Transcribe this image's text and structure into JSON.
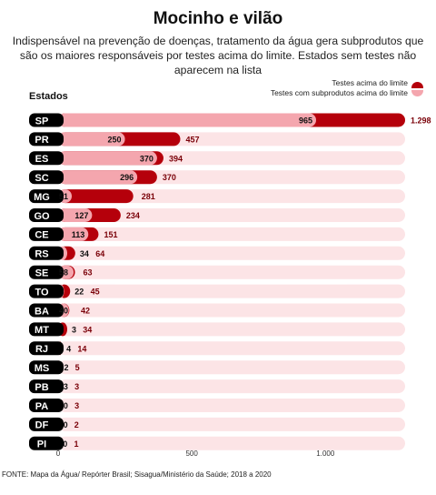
{
  "header": {
    "title": "Mocinho e vilão",
    "subtitle": "Indispensável na prevenção de doenças, tratamento da água gera subprodutos que são os maiores responsáveis por testes acima do limite. Estados sem testes não aparecem na lista"
  },
  "legend": {
    "series_above": "Testes acima do limite",
    "series_byproducts": "Testes com subprodutos acima do limite"
  },
  "source": "FONTE: Mapa da Água/ Repórter Brasil; Sisagua/Ministério da Saúde; 2018 a 2020",
  "colors": {
    "above": "#b5000b",
    "byproducts": "#f4a6ae",
    "track": "#fce4e6",
    "label_bg": "#000000"
  },
  "chart_data": {
    "type": "bar",
    "orientation": "horizontal",
    "ylabel": "Estados",
    "xlim": [
      0,
      1298
    ],
    "x_ticks": [
      0,
      500,
      1000
    ],
    "x_tick_labels": [
      "0",
      "500",
      "1.000"
    ],
    "categories": [
      "SP",
      "PR",
      "ES",
      "SC",
      "MG",
      "GO",
      "CE",
      "RS",
      "SE",
      "TO",
      "BA",
      "MT",
      "RJ",
      "MS",
      "PB",
      "PA",
      "DF",
      "PI"
    ],
    "series": [
      {
        "name": "Testes acima do limite",
        "values": [
          1298,
          457,
          394,
          370,
          281,
          234,
          151,
          64,
          63,
          45,
          42,
          34,
          14,
          5,
          3,
          3,
          2,
          1
        ],
        "value_labels": [
          "1.298",
          "457",
          "394",
          "370",
          "281",
          "234",
          "151",
          "64",
          "63",
          "45",
          "42",
          "34",
          "14",
          "5",
          "3",
          "3",
          "2",
          "1"
        ]
      },
      {
        "name": "Testes com subprodutos acima do limite",
        "values": [
          965,
          250,
          370,
          296,
          51,
          127,
          113,
          34,
          58,
          22,
          40,
          3,
          4,
          2,
          3,
          0,
          0,
          0
        ],
        "value_labels": [
          "965",
          "250",
          "370",
          "296",
          "51",
          "127",
          "113",
          "34",
          "58",
          "22",
          "40",
          "3",
          "4",
          "2",
          "3",
          "0",
          "0",
          "0"
        ]
      }
    ]
  }
}
